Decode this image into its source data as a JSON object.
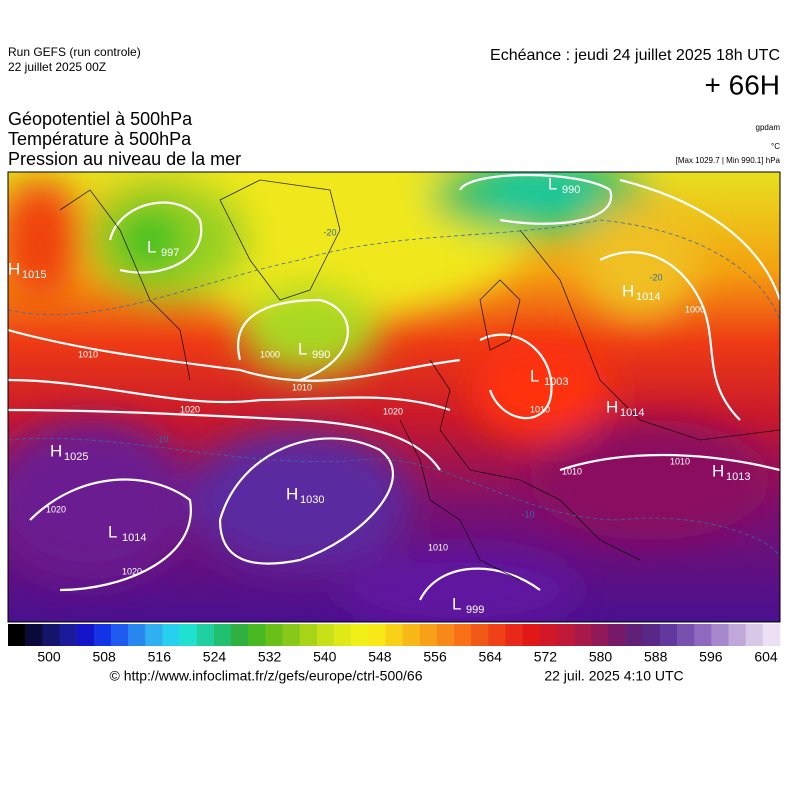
{
  "header": {
    "run": "Run GEFS (run controle)",
    "run_date": "22 juillet 2025 00Z",
    "valid": "Echéance : jeudi 24 juillet 2025 18h UTC",
    "lead": "+ 66H"
  },
  "fields": [
    "Géopotentiel à 500hPa",
    "Température à 500hPa",
    "Pression au niveau de la mer"
  ],
  "units": [
    "gpdam",
    "°C",
    "[Max 1029.7 | Min 990.1] hPa"
  ],
  "centers": [
    {
      "type": "H",
      "value": "1015"
    },
    {
      "type": "L",
      "value": "997"
    },
    {
      "type": "L",
      "value": "990"
    },
    {
      "type": "L",
      "value": "990"
    },
    {
      "type": "H",
      "value": "1014"
    },
    {
      "type": "L",
      "value": "1003"
    },
    {
      "type": "H",
      "value": "1014"
    },
    {
      "type": "H",
      "value": "1013"
    },
    {
      "type": "H",
      "value": "1025"
    },
    {
      "type": "H",
      "value": "1030"
    },
    {
      "type": "L",
      "value": "1014"
    },
    {
      "type": "L",
      "value": "999"
    }
  ],
  "contour_labels": [
    "1010",
    "1010",
    "1020",
    "1020",
    "1000",
    "1020",
    "1020",
    "1010",
    "1010",
    "1010",
    "1010",
    "1000",
    "-20",
    "-10",
    "-10",
    "-20"
  ],
  "colorbar": {
    "ticks": [
      500,
      508,
      516,
      524,
      532,
      540,
      548,
      556,
      564,
      572,
      580,
      588,
      596,
      604
    ]
  },
  "footer": {
    "url": "© http://www.infoclimat.fr/z/gefs/europe/ctrl-500/66",
    "date": "22 juil. 2025  4:10 UTC"
  }
}
